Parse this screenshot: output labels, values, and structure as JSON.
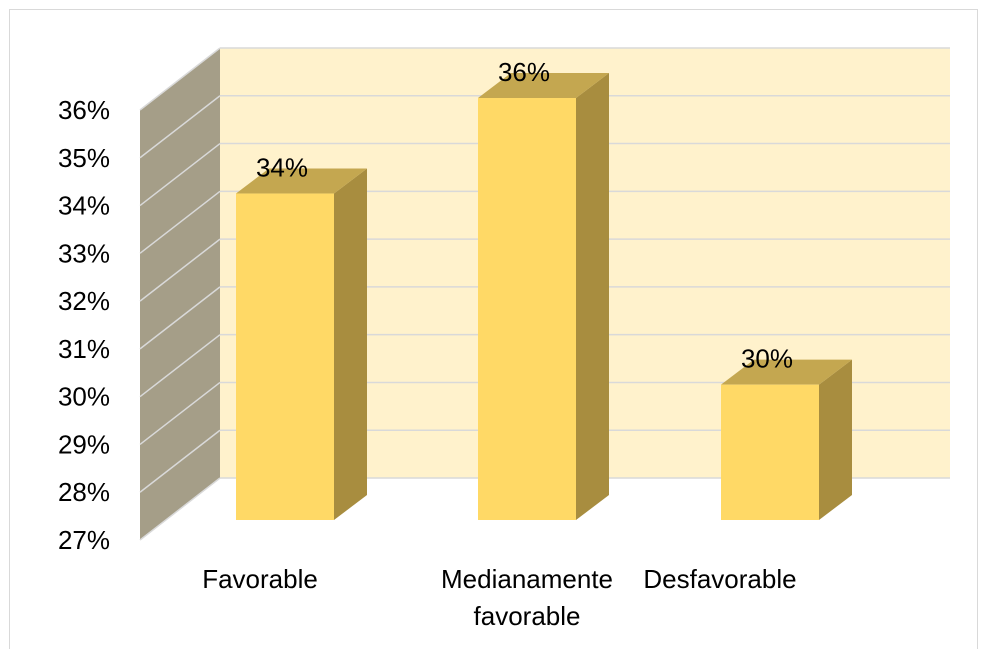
{
  "colors": {
    "back_wall": "#fff2cc",
    "side_wall": "#a59e88",
    "gridline": "#d9d9d9",
    "bar_front": "#ffd966",
    "bar_side": "#a88d3f",
    "bar_top": "#c4a750"
  },
  "chart_data": {
    "type": "bar",
    "style": "3d-column",
    "title": "",
    "xlabel": "",
    "ylabel": "",
    "categories": [
      [
        "Favorable"
      ],
      [
        "Medianamente",
        "favorable"
      ],
      [
        "Desfavorable"
      ]
    ],
    "values": [
      34,
      36,
      30
    ],
    "data_labels": [
      "34%",
      "36%",
      "30%"
    ],
    "ylim": [
      27,
      36
    ],
    "y_ticks": [
      "27%",
      "28%",
      "29%",
      "30%",
      "31%",
      "32%",
      "33%",
      "34%",
      "35%",
      "36%"
    ],
    "grid": true,
    "legend": "none"
  }
}
